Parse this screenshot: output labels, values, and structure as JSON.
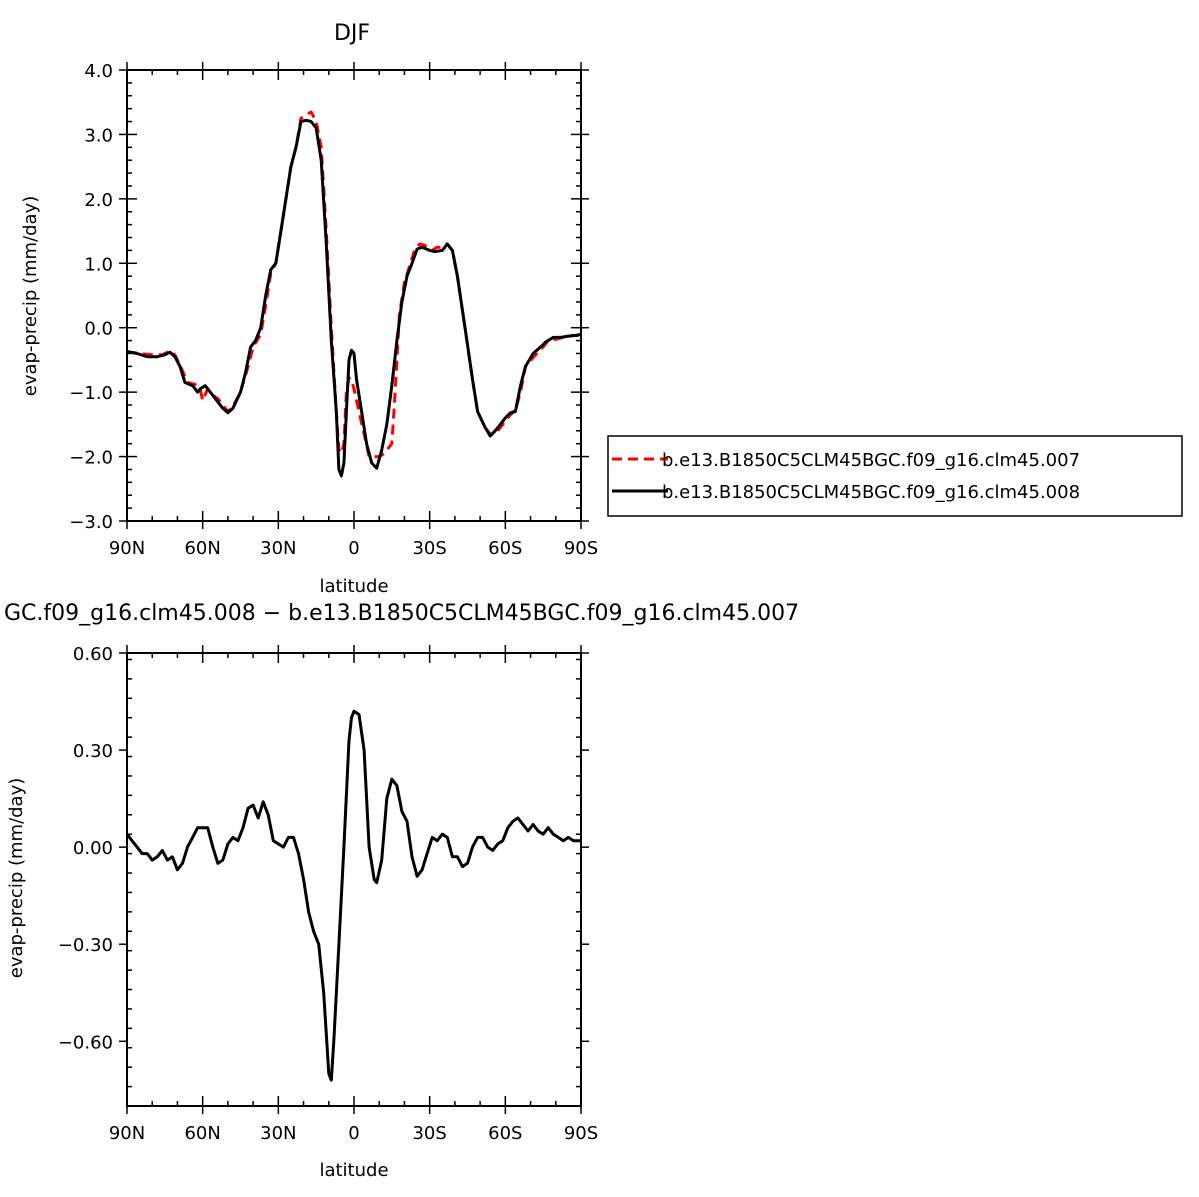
{
  "chart_data": [
    {
      "type": "line",
      "title": "DJF",
      "xlabel": "latitude",
      "ylabel": "evap-precip (mm/day)",
      "xlim": [
        90,
        -90
      ],
      "ylim": [
        -3.0,
        4.0
      ],
      "x_ticks": [
        "90N",
        "60N",
        "30N",
        "0",
        "30S",
        "60S",
        "90S"
      ],
      "y_ticks": [
        "4.0",
        "3.0",
        "2.0",
        "1.0",
        "0.0",
        "−1.0",
        "−2.0",
        "−3.0"
      ],
      "legend_position": "right",
      "series": [
        {
          "name": "b.e13.B1850C5CLM45BGC.f09_g16.clm45.007",
          "color": "#ff0000",
          "style": "dashed",
          "points": [
            [
              90,
              -0.37
            ],
            [
              85,
              -0.4
            ],
            [
              80,
              -0.42
            ],
            [
              76,
              -0.42
            ],
            [
              73,
              -0.36
            ],
            [
              71,
              -0.42
            ],
            [
              69,
              -0.58
            ],
            [
              66,
              -0.85
            ],
            [
              63,
              -0.88
            ],
            [
              61,
              -0.95
            ],
            [
              60,
              -1.13
            ],
            [
              58,
              -0.95
            ],
            [
              56,
              -1.05
            ],
            [
              54,
              -1.1
            ],
            [
              52,
              -1.2
            ],
            [
              50,
              -1.3
            ],
            [
              48,
              -1.22
            ],
            [
              45,
              -1.0
            ],
            [
              42,
              -0.6
            ],
            [
              40,
              -0.3
            ],
            [
              37,
              -0.1
            ],
            [
              35,
              0.35
            ],
            [
              33,
              0.85
            ],
            [
              31,
              1.0
            ],
            [
              29,
              1.5
            ],
            [
              27,
              2.0
            ],
            [
              25,
              2.5
            ],
            [
              23,
              2.8
            ],
            [
              21,
              3.25
            ],
            [
              19,
              3.3
            ],
            [
              17,
              3.35
            ],
            [
              15,
              3.2
            ],
            [
              13,
              2.8
            ],
            [
              11,
              1.5
            ],
            [
              9,
              0.0
            ],
            [
              7,
              -1.3
            ],
            [
              6,
              -1.9
            ],
            [
              5,
              -1.95
            ],
            [
              4,
              -1.8
            ],
            [
              3,
              -1.0
            ],
            [
              2,
              -0.78
            ],
            [
              1,
              -0.8
            ],
            [
              0,
              -0.95
            ],
            [
              -2,
              -1.3
            ],
            [
              -4,
              -1.65
            ],
            [
              -6,
              -2.0
            ],
            [
              -8,
              -2.0
            ],
            [
              -10,
              -2.0
            ],
            [
              -12,
              -1.95
            ],
            [
              -14,
              -1.85
            ],
            [
              -15,
              -1.8
            ],
            [
              -16,
              -1.2
            ],
            [
              -18,
              0.2
            ],
            [
              -20,
              0.7
            ],
            [
              -22,
              0.95
            ],
            [
              -24,
              1.2
            ],
            [
              -26,
              1.3
            ],
            [
              -28,
              1.28
            ],
            [
              -31,
              1.2
            ],
            [
              -33,
              1.25
            ],
            [
              -35,
              1.25
            ],
            [
              -37,
              1.3
            ],
            [
              -39,
              1.2
            ],
            [
              -41,
              0.8
            ],
            [
              -44,
              0.0
            ],
            [
              -47,
              -0.8
            ],
            [
              -49,
              -1.3
            ],
            [
              -52,
              -1.55
            ],
            [
              -54,
              -1.65
            ],
            [
              -56,
              -1.65
            ],
            [
              -58,
              -1.55
            ],
            [
              -60,
              -1.45
            ],
            [
              -62,
              -1.35
            ],
            [
              -64,
              -1.28
            ],
            [
              -66,
              -1.0
            ],
            [
              -68,
              -0.6
            ],
            [
              -72,
              -0.42
            ],
            [
              -75,
              -0.3
            ],
            [
              -77,
              -0.2
            ],
            [
              -80,
              -0.18
            ],
            [
              -83,
              -0.15
            ],
            [
              -87,
              -0.12
            ],
            [
              -90,
              -0.12
            ]
          ]
        },
        {
          "name": "b.e13.B1850C5CLM45BGC.f09_g16.clm45.008",
          "color": "#000000",
          "style": "solid",
          "points": [
            [
              90,
              -0.37
            ],
            [
              86,
              -0.4
            ],
            [
              82,
              -0.45
            ],
            [
              78,
              -0.45
            ],
            [
              75,
              -0.42
            ],
            [
              73,
              -0.38
            ],
            [
              71,
              -0.45
            ],
            [
              69,
              -0.6
            ],
            [
              67,
              -0.85
            ],
            [
              64,
              -0.9
            ],
            [
              62,
              -1.0
            ],
            [
              61,
              -0.95
            ],
            [
              59,
              -0.9
            ],
            [
              57,
              -1.0
            ],
            [
              55,
              -1.1
            ],
            [
              52,
              -1.25
            ],
            [
              50,
              -1.32
            ],
            [
              48,
              -1.25
            ],
            [
              45,
              -1.0
            ],
            [
              43,
              -0.7
            ],
            [
              41,
              -0.3
            ],
            [
              39,
              -0.2
            ],
            [
              37,
              0.0
            ],
            [
              35,
              0.5
            ],
            [
              33,
              0.9
            ],
            [
              31,
              1.0
            ],
            [
              29,
              1.5
            ],
            [
              27,
              2.0
            ],
            [
              25,
              2.5
            ],
            [
              23,
              2.8
            ],
            [
              21,
              3.2
            ],
            [
              19,
              3.22
            ],
            [
              17,
              3.2
            ],
            [
              15,
              3.1
            ],
            [
              13,
              2.6
            ],
            [
              11,
              1.3
            ],
            [
              9,
              -0.2
            ],
            [
              7,
              -1.3
            ],
            [
              6,
              -2.2
            ],
            [
              5,
              -2.3
            ],
            [
              4,
              -2.1
            ],
            [
              3,
              -1.3
            ],
            [
              2,
              -0.5
            ],
            [
              1,
              -0.35
            ],
            [
              0,
              -0.4
            ],
            [
              -1,
              -0.8
            ],
            [
              -3,
              -1.3
            ],
            [
              -5,
              -1.8
            ],
            [
              -7,
              -2.1
            ],
            [
              -9,
              -2.18
            ],
            [
              -11,
              -1.9
            ],
            [
              -13,
              -1.5
            ],
            [
              -15,
              -0.9
            ],
            [
              -17,
              -0.2
            ],
            [
              -19,
              0.4
            ],
            [
              -21,
              0.8
            ],
            [
              -23,
              1.0
            ],
            [
              -25,
              1.22
            ],
            [
              -27,
              1.25
            ],
            [
              -30,
              1.2
            ],
            [
              -32,
              1.18
            ],
            [
              -35,
              1.2
            ],
            [
              -37,
              1.3
            ],
            [
              -39,
              1.2
            ],
            [
              -41,
              0.8
            ],
            [
              -44,
              0.0
            ],
            [
              -47,
              -0.8
            ],
            [
              -49,
              -1.3
            ],
            [
              -52,
              -1.55
            ],
            [
              -54,
              -1.68
            ],
            [
              -56,
              -1.6
            ],
            [
              -58,
              -1.5
            ],
            [
              -60,
              -1.4
            ],
            [
              -62,
              -1.32
            ],
            [
              -64,
              -1.3
            ],
            [
              -66,
              -0.9
            ],
            [
              -68,
              -0.6
            ],
            [
              -71,
              -0.4
            ],
            [
              -74,
              -0.3
            ],
            [
              -76,
              -0.22
            ],
            [
              -79,
              -0.15
            ],
            [
              -82,
              -0.15
            ],
            [
              -85,
              -0.13
            ],
            [
              -88,
              -0.12
            ],
            [
              -90,
              -0.1
            ]
          ]
        }
      ]
    },
    {
      "type": "line",
      "title": "GC.f09_g16.clm45.008 − b.e13.B1850C5CLM45BGC.f09_g16.clm45.007",
      "xlabel": "latitude",
      "ylabel": "evap-precip (mm/day)",
      "xlim": [
        90,
        -90
      ],
      "ylim": [
        -0.8,
        0.6
      ],
      "x_ticks": [
        "90N",
        "60N",
        "30N",
        "0",
        "30S",
        "60S",
        "90S"
      ],
      "y_ticks": [
        "0.60",
        "0.30",
        "0.00",
        "−0.30",
        "−0.60"
      ],
      "series": [
        {
          "color": "#000000",
          "style": "solid",
          "points": [
            [
              90,
              0.04
            ],
            [
              88,
              0.02
            ],
            [
              86,
              0.0
            ],
            [
              84,
              -0.02
            ],
            [
              82,
              -0.02
            ],
            [
              80,
              -0.04
            ],
            [
              78,
              -0.03
            ],
            [
              76,
              -0.01
            ],
            [
              74,
              -0.04
            ],
            [
              72,
              -0.03
            ],
            [
              70,
              -0.07
            ],
            [
              68,
              -0.05
            ],
            [
              66,
              0.0
            ],
            [
              64,
              0.03
            ],
            [
              62,
              0.06
            ],
            [
              60,
              0.06
            ],
            [
              58,
              0.06
            ],
            [
              56,
              0.0
            ],
            [
              54,
              -0.05
            ],
            [
              52,
              -0.04
            ],
            [
              50,
              0.01
            ],
            [
              48,
              0.03
            ],
            [
              46,
              0.02
            ],
            [
              44,
              0.06
            ],
            [
              42,
              0.12
            ],
            [
              40,
              0.13
            ],
            [
              38,
              0.09
            ],
            [
              36,
              0.14
            ],
            [
              34,
              0.1
            ],
            [
              32,
              0.02
            ],
            [
              30,
              0.01
            ],
            [
              28,
              0.0
            ],
            [
              26,
              0.03
            ],
            [
              24,
              0.03
            ],
            [
              22,
              -0.02
            ],
            [
              20,
              -0.1
            ],
            [
              18,
              -0.2
            ],
            [
              16,
              -0.26
            ],
            [
              14,
              -0.3
            ],
            [
              12,
              -0.45
            ],
            [
              10,
              -0.7
            ],
            [
              9,
              -0.72
            ],
            [
              8,
              -0.6
            ],
            [
              6,
              -0.3
            ],
            [
              4,
              0.0
            ],
            [
              2,
              0.33
            ],
            [
              1,
              0.4
            ],
            [
              0,
              0.42
            ],
            [
              -2,
              0.41
            ],
            [
              -4,
              0.3
            ],
            [
              -6,
              0.0
            ],
            [
              -8,
              -0.1
            ],
            [
              -9,
              -0.11
            ],
            [
              -11,
              -0.04
            ],
            [
              -13,
              0.15
            ],
            [
              -15,
              0.21
            ],
            [
              -17,
              0.19
            ],
            [
              -19,
              0.11
            ],
            [
              -21,
              0.08
            ],
            [
              -23,
              -0.03
            ],
            [
              -25,
              -0.09
            ],
            [
              -27,
              -0.07
            ],
            [
              -29,
              -0.02
            ],
            [
              -31,
              0.03
            ],
            [
              -33,
              0.02
            ],
            [
              -35,
              0.04
            ],
            [
              -37,
              0.03
            ],
            [
              -39,
              -0.03
            ],
            [
              -41,
              -0.03
            ],
            [
              -43,
              -0.06
            ],
            [
              -45,
              -0.05
            ],
            [
              -47,
              0.0
            ],
            [
              -49,
              0.03
            ],
            [
              -51,
              0.03
            ],
            [
              -53,
              0.0
            ],
            [
              -55,
              -0.01
            ],
            [
              -57,
              0.01
            ],
            [
              -59,
              0.02
            ],
            [
              -61,
              0.06
            ],
            [
              -63,
              0.08
            ],
            [
              -65,
              0.09
            ],
            [
              -67,
              0.07
            ],
            [
              -69,
              0.05
            ],
            [
              -71,
              0.07
            ],
            [
              -73,
              0.05
            ],
            [
              -75,
              0.04
            ],
            [
              -77,
              0.06
            ],
            [
              -79,
              0.04
            ],
            [
              -81,
              0.03
            ],
            [
              -83,
              0.02
            ],
            [
              -85,
              0.03
            ],
            [
              -87,
              0.02
            ],
            [
              -90,
              0.02
            ]
          ]
        }
      ]
    }
  ]
}
